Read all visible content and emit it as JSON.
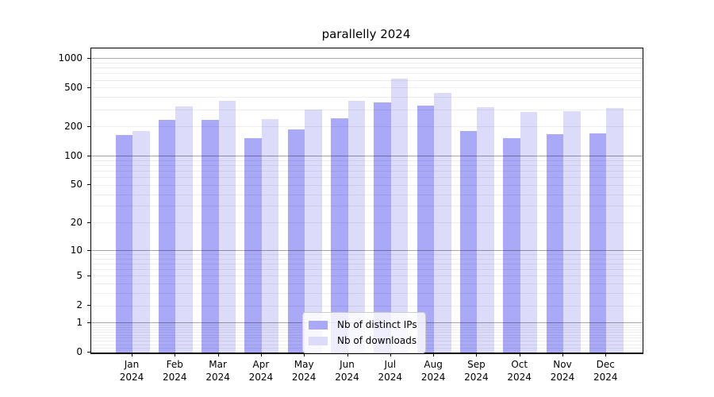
{
  "title": "parallelly 2024",
  "chart_data": {
    "type": "bar",
    "title": "parallelly 2024",
    "categories": [
      "Jan",
      "Feb",
      "Mar",
      "Apr",
      "May",
      "Jun",
      "Jul",
      "Aug",
      "Sep",
      "Oct",
      "Nov",
      "Dec"
    ],
    "year_label": "2024",
    "series": [
      {
        "name": "Nb of distinct IPs",
        "color": "#a9a9f7",
        "values": [
          165,
          234,
          234,
          153,
          190,
          243,
          354,
          330,
          183,
          152,
          167,
          171
        ]
      },
      {
        "name": "Nb of downloads",
        "color": "#dcdcfa",
        "values": [
          180,
          322,
          373,
          240,
          300,
          368,
          625,
          445,
          320,
          284,
          289,
          315
        ]
      }
    ],
    "y_ticks": [
      0,
      1,
      2,
      5,
      10,
      20,
      50,
      100,
      200,
      500,
      1000
    ],
    "y_major_grid": [
      1,
      10,
      100,
      1000
    ],
    "ylim": [
      0,
      1270
    ],
    "scale": "log1p",
    "grid": "both",
    "legend_position": "lower-center",
    "colors": {
      "axis": "#000000",
      "grid_major": "#aaaaaa",
      "grid_minor": "#ebebeb"
    }
  }
}
